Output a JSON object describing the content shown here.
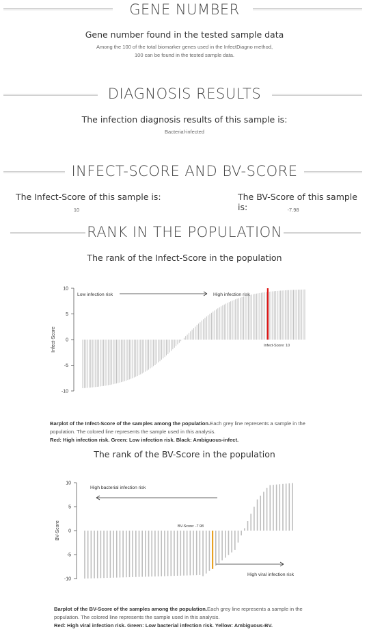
{
  "sections": {
    "gene_number": {
      "title": "GENE NUMBER",
      "subtitle": "Gene number found in the tested sample data",
      "line1": "Among the 100 of the total biomarker genes used in the InfectDiagno method,",
      "line2": "100 can be found in the tested sample data."
    },
    "diagnosis": {
      "title": "DIAGNOSIS RESULTS",
      "subtitle": "The infection diagnosis results of this sample is:",
      "result": "Bacterial-infected"
    },
    "scores": {
      "title": "INFECT-SCORE AND BV-SCORE",
      "infect_label": "The Infect-Score of this sample is:",
      "infect_value": "10",
      "bv_label": "The BV-Score of this sample is:",
      "bv_value": "-7.98"
    },
    "rank": {
      "title": "RANK IN THE POPULATION",
      "infect_chart_title": "The rank of the Infect-Score in the population",
      "infect_caption_bold": "Barplot of the Infect-Score of the samples among the population.",
      "infect_caption_text": "Each grey line represents a sample in the population. The colored line represents the sample used in this analysis.",
      "infect_caption_legend": "Red: High infection risk. Green: Low infection risk. Black: Ambiguous-infect.",
      "bv_chart_title": "The rank of the BV-Score in the population",
      "bv_caption_bold": "Barplot of the BV-Score of the samples among the population.",
      "bv_caption_text": "Each grey line represents a sample in the population. The colored line represents the sample used in this analysis.",
      "bv_caption_legend": "Red: High viral infection risk. Green: Low bacterial infection risk. Yellow: Ambiguous-BV."
    }
  },
  "colors": {
    "bar_grey": "#bdbdbd",
    "highlight_red": "#dd1111",
    "highlight_yellow": "#e8a020"
  },
  "chart_data": [
    {
      "type": "bar",
      "title": "",
      "xlabel": "",
      "ylabel": "Infect-Score",
      "ylim": [
        -10,
        10
      ],
      "yticks": [
        -10,
        -5,
        0,
        5,
        10
      ],
      "n_samples": 139,
      "values_description": "sorted ascending, about -10 to 10",
      "low_start": -9.8,
      "high_end": 9.9,
      "highlight": {
        "label": "Infect-Score: 10",
        "value": 10,
        "rank_index": 115,
        "color": "red"
      },
      "annotations": [
        "Low infection risk",
        "High infection risk"
      ]
    },
    {
      "type": "bar",
      "title": "",
      "xlabel": "",
      "ylabel": "BV-Score",
      "ylim": [
        -10,
        10
      ],
      "yticks": [
        -10,
        -5,
        0,
        5,
        10
      ],
      "n_samples": 66,
      "values_description": "sorted ascending, about -10 to 10",
      "highlight": {
        "label": "BV-Score: -7.98",
        "value": -7.98,
        "rank_index": 40,
        "color": "yellow"
      },
      "annotations": [
        "High bacterial infection risk",
        "High viral infection risk"
      ]
    }
  ]
}
